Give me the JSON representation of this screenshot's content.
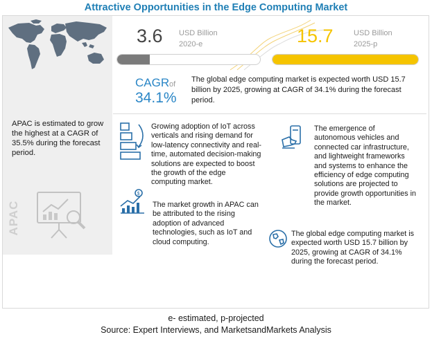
{
  "title": "Attractive Opportunities in the Edge Computing Market",
  "apac_text": "APAC is estimated to grow the highest at a CAGR of 35.5% during the forecast period.",
  "apac_label": "APAC",
  "stat_2020": {
    "value": "3.6",
    "unit": "USD Billion",
    "year": "2020-e",
    "bar_fraction": 0.23
  },
  "stat_2025": {
    "value": "15.7",
    "unit": "USD Billion",
    "year": "2025-p",
    "bar_fraction": 1.0
  },
  "cagr": {
    "label": "CAGR",
    "of": "of",
    "value": "34.1%",
    "text": "The global edge computing market is expected worth USD 15.7 billion by 2025, growing at CAGR of 34.1% during the forecast period."
  },
  "drivers": [
    "Growing adoption of IoT across verticals and rising demand for low-latency connectivity and real-time, automated decision-making solutions are expected to boost the growth of the edge computing market.",
    "The emergence of autonomous vehicles and connected car infrastructure, and lightweight frameworks and systems to enhance the efficiency of edge computing solutions are projected to provide growth opportunities in the market.",
    "The market growth in APAC can be attributed to the rising adoption of advanced technologies, such as IoT and cloud computing.",
    "The global edge computing market is expected worth USD 15.7 billion by 2025, growing at CAGR of 34.1% during the forecast period."
  ],
  "footnote": "e- estimated, p-projected",
  "source": "Source: Expert Interviews, and MarketsandMarkets Analysis",
  "colors": {
    "accent_blue": "#2a86c6",
    "title_blue": "#1f7fb5",
    "yellow": "#f5c400",
    "gray_bar": "#7b7b7b"
  },
  "icons": [
    "world-map-icon",
    "presentation-board-icon",
    "vertical-bar-chart-icon",
    "hand-phone-icon",
    "growth-chart-icon",
    "globe-icon"
  ]
}
